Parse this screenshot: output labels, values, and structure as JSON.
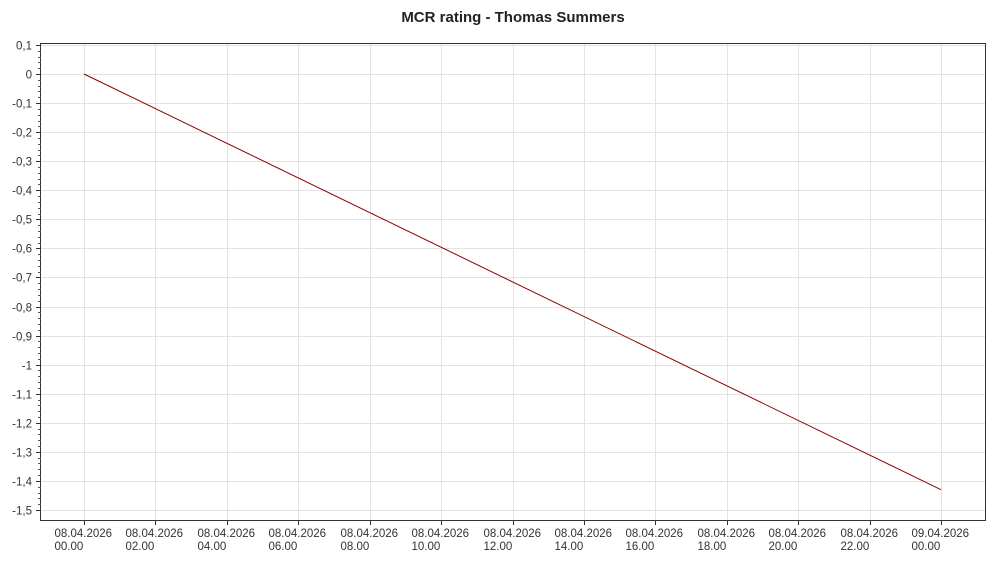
{
  "chart_data": {
    "type": "line",
    "title": "MCR rating - Thomas Summers",
    "xlabel": "",
    "ylabel": "",
    "ylim": [
      -1.5,
      0.1
    ],
    "xlim_hours": [
      0,
      24
    ],
    "grid": true,
    "y_ticks": [
      "0,1",
      "0",
      "-0,1",
      "-0,2",
      "-0,3",
      "-0,4",
      "-0,5",
      "-0,6",
      "-0,7",
      "-0,8",
      "-0,9",
      "-1",
      "-1,1",
      "-1,2",
      "-1,3",
      "-1,4",
      "-1,5"
    ],
    "x_ticks": [
      {
        "date": "08.04.2026",
        "time": "00.00"
      },
      {
        "date": "08.04.2026",
        "time": "02.00"
      },
      {
        "date": "08.04.2026",
        "time": "04.00"
      },
      {
        "date": "08.04.2026",
        "time": "06.00"
      },
      {
        "date": "08.04.2026",
        "time": "08.00"
      },
      {
        "date": "08.04.2026",
        "time": "10.00"
      },
      {
        "date": "08.04.2026",
        "time": "12.00"
      },
      {
        "date": "08.04.2026",
        "time": "14.00"
      },
      {
        "date": "08.04.2026",
        "time": "16.00"
      },
      {
        "date": "08.04.2026",
        "time": "18.00"
      },
      {
        "date": "08.04.2026",
        "time": "20.00"
      },
      {
        "date": "08.04.2026",
        "time": "22.00"
      },
      {
        "date": "09.04.2026",
        "time": "00.00"
      }
    ],
    "series": [
      {
        "color": "#8b0000",
        "points": [
          {
            "x": "08.04.2026 00.00",
            "y": 0
          },
          {
            "x": "09.04.2026 00.00",
            "y": -1.43
          }
        ]
      }
    ]
  }
}
